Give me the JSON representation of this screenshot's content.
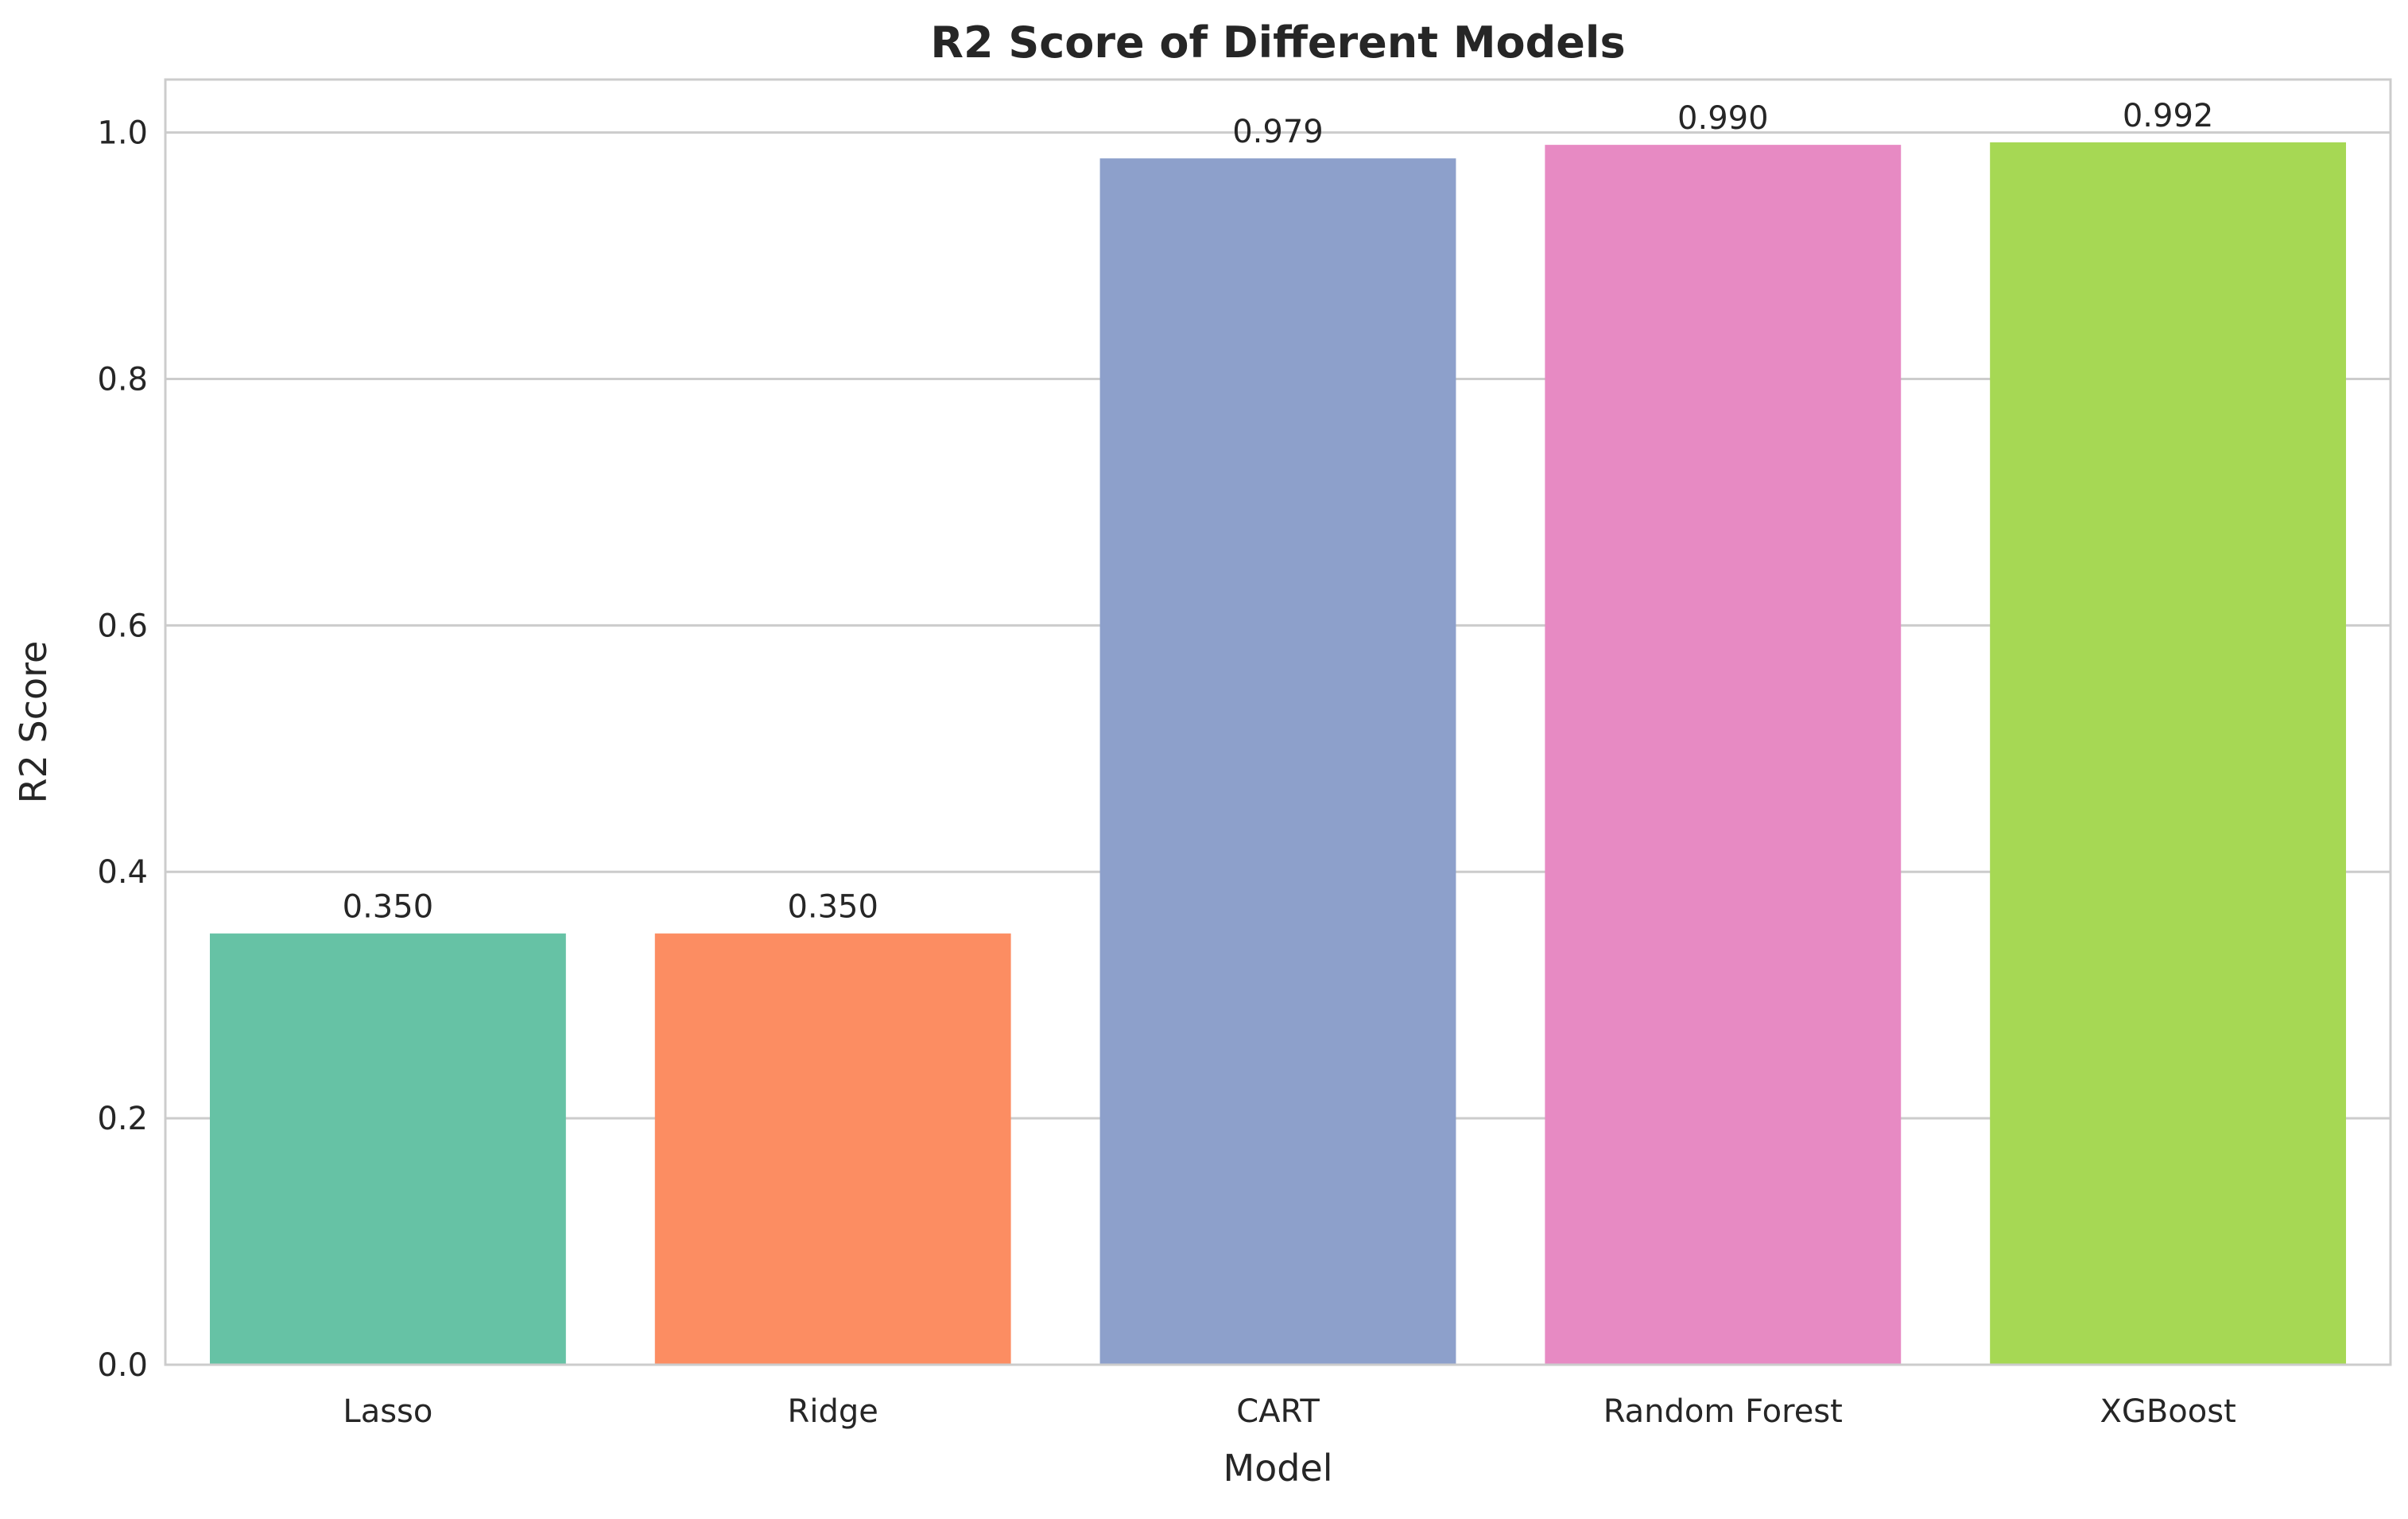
{
  "chart_data": {
    "type": "bar",
    "title": "R2 Score of Different Models",
    "xlabel": "Model",
    "ylabel": "R2 Score",
    "categories": [
      "Lasso",
      "Ridge",
      "CART",
      "Random Forest",
      "XGBoost"
    ],
    "values": [
      0.35,
      0.35,
      0.979,
      0.99,
      0.992
    ],
    "data_labels": [
      "0.350",
      "0.350",
      "0.979",
      "0.990",
      "0.992"
    ],
    "colors": [
      "#66c2a5",
      "#fc8d62",
      "#8da0cb",
      "#e78ac3",
      "#a6d854"
    ],
    "ylim": [
      0,
      1.043
    ],
    "yticks": [
      0.0,
      0.2,
      0.4,
      0.6,
      0.8,
      1.0
    ],
    "ytick_labels": [
      "0.0",
      "0.2",
      "0.4",
      "0.6",
      "0.8",
      "1.0"
    ],
    "grid": "horizontal",
    "legend": "none"
  }
}
